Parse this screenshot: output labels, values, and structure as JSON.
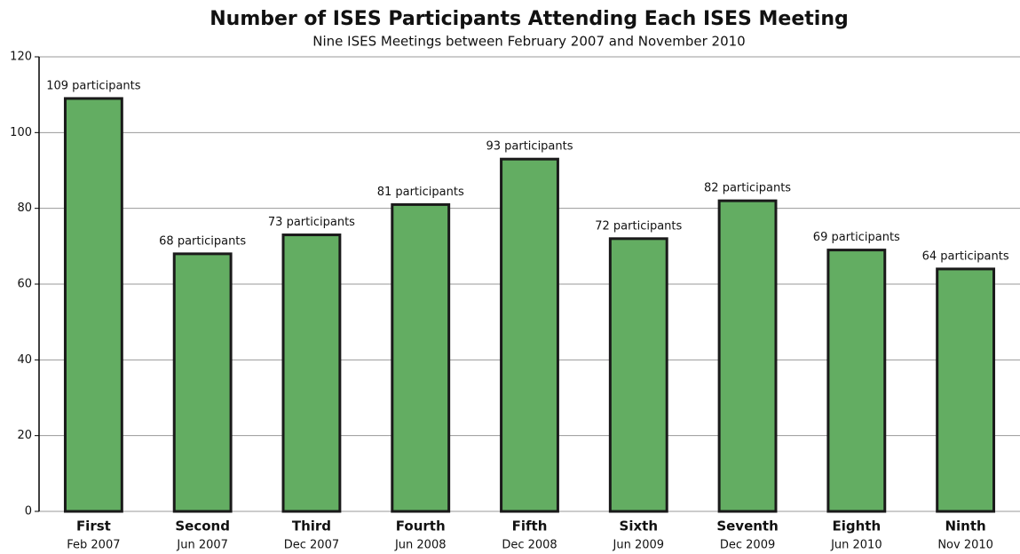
{
  "chart_data": {
    "type": "bar",
    "title": "Number of ISES Participants Attending Each ISES Meeting",
    "subtitle": "Nine ISES Meetings between February 2007 and November 2010",
    "categories": [
      "First",
      "Second",
      "Third",
      "Fourth",
      "Fifth",
      "Sixth",
      "Seventh",
      "Eighth",
      "Ninth"
    ],
    "category_dates": [
      "Feb 2007",
      "Jun 2007",
      "Dec 2007",
      "Jun 2008",
      "Dec 2008",
      "Jun 2009",
      "Dec 2009",
      "Jun 2010",
      "Nov 2010"
    ],
    "values": [
      109,
      68,
      73,
      81,
      93,
      72,
      82,
      69,
      64
    ],
    "value_labels": [
      "109 participants",
      "68 participants",
      "73 participants",
      "81 participants",
      "93 participants",
      "72 participants",
      "82 participants",
      "69 participants",
      "64 participants"
    ],
    "color": "#63ad62",
    "ylim": [
      0,
      120
    ],
    "yticks": [
      0,
      20,
      40,
      60,
      80,
      100,
      120
    ],
    "grid": true
  }
}
